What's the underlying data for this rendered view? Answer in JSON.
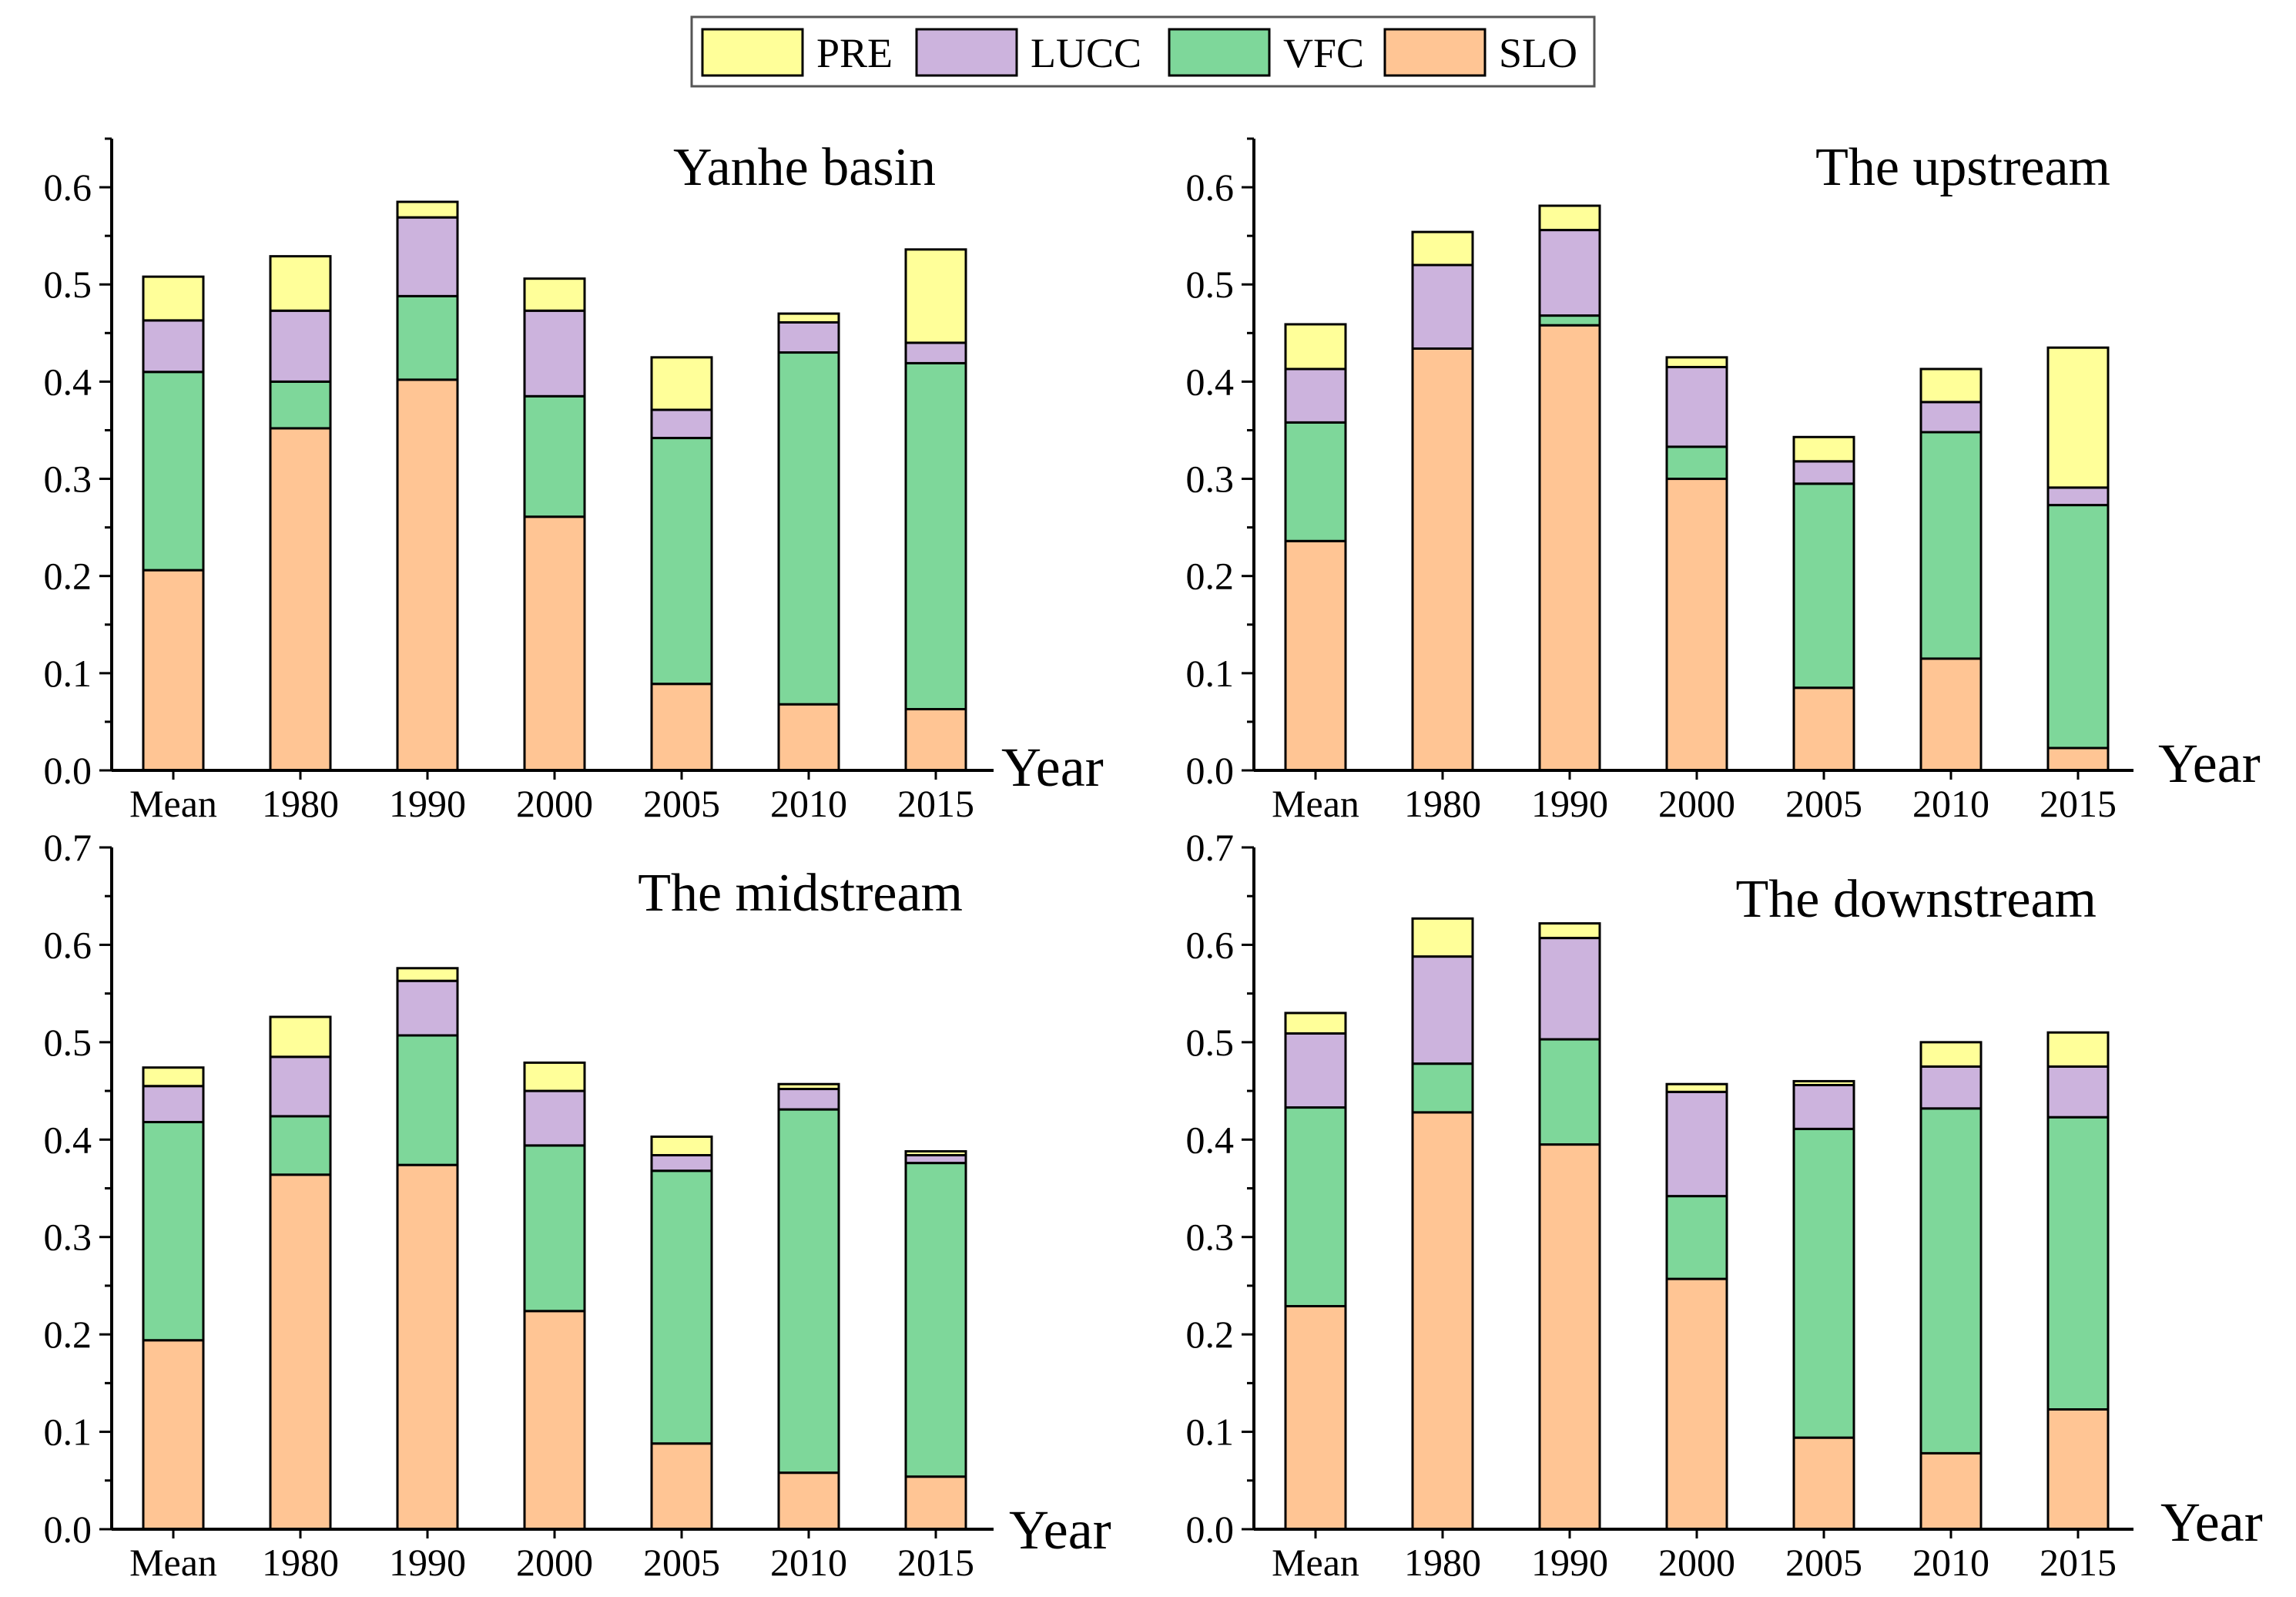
{
  "legend": [
    {
      "key": "PRE",
      "label": "PRE",
      "color": "#FFFF99"
    },
    {
      "key": "LUCC",
      "label": "LUCC",
      "color": "#CCB3DD"
    },
    {
      "key": "VFC",
      "label": "VFC",
      "color": "#7ED79A"
    },
    {
      "key": "SLO",
      "label": "SLO",
      "color": "#FFC594"
    }
  ],
  "chart_data": [
    {
      "type": "bar",
      "stacked": true,
      "title": "Yanhe basin",
      "xlabel": "Year",
      "ylabel": "",
      "categories": [
        "Mean",
        "1980",
        "1990",
        "2000",
        "2005",
        "2010",
        "2015"
      ],
      "ylim": [
        0,
        0.65
      ],
      "yticks": [
        0.0,
        0.1,
        0.2,
        0.3,
        0.4,
        0.5,
        0.6
      ],
      "ytick_labels": [
        "0.0",
        "0.1",
        "0.2",
        "0.3",
        "0.4",
        "0.5",
        "0.6"
      ],
      "series": [
        {
          "name": "SLO",
          "values": [
            0.206,
            0.352,
            0.402,
            0.261,
            0.089,
            0.068,
            0.063
          ]
        },
        {
          "name": "VFC",
          "values": [
            0.204,
            0.048,
            0.086,
            0.124,
            0.253,
            0.362,
            0.356
          ]
        },
        {
          "name": "LUCC",
          "values": [
            0.053,
            0.073,
            0.081,
            0.088,
            0.029,
            0.031,
            0.021
          ]
        },
        {
          "name": "PRE",
          "values": [
            0.045,
            0.056,
            0.016,
            0.033,
            0.054,
            0.009,
            0.096
          ]
        }
      ]
    },
    {
      "type": "bar",
      "stacked": true,
      "title": "The upstream",
      "xlabel": "Year",
      "ylabel": "",
      "categories": [
        "Mean",
        "1980",
        "1990",
        "2000",
        "2005",
        "2010",
        "2015"
      ],
      "ylim": [
        0,
        0.65
      ],
      "yticks": [
        0.0,
        0.1,
        0.2,
        0.3,
        0.4,
        0.5,
        0.6
      ],
      "ytick_labels": [
        "0.0",
        "0.1",
        "0.2",
        "0.3",
        "0.4",
        "0.5",
        "0.6"
      ],
      "series": [
        {
          "name": "SLO",
          "values": [
            0.236,
            0.434,
            0.458,
            0.3,
            0.085,
            0.115,
            0.023
          ]
        },
        {
          "name": "VFC",
          "values": [
            0.122,
            0.0,
            0.01,
            0.033,
            0.21,
            0.233,
            0.25
          ]
        },
        {
          "name": "LUCC",
          "values": [
            0.055,
            0.086,
            0.088,
            0.082,
            0.023,
            0.031,
            0.018
          ]
        },
        {
          "name": "PRE",
          "values": [
            0.046,
            0.034,
            0.025,
            0.01,
            0.025,
            0.034,
            0.144
          ]
        }
      ]
    },
    {
      "type": "bar",
      "stacked": true,
      "title": "The midstream",
      "xlabel": "Year",
      "ylabel": "",
      "categories": [
        "Mean",
        "1980",
        "1990",
        "2000",
        "2005",
        "2010",
        "2015"
      ],
      "ylim": [
        0,
        0.7
      ],
      "yticks": [
        0.0,
        0.1,
        0.2,
        0.3,
        0.4,
        0.5,
        0.6,
        0.7
      ],
      "ytick_labels": [
        "0.0",
        "0.1",
        "0.2",
        "0.3",
        "0.4",
        "0.5",
        "0.6",
        "0.7"
      ],
      "series": [
        {
          "name": "SLO",
          "values": [
            0.194,
            0.364,
            0.374,
            0.224,
            0.088,
            0.058,
            0.054
          ]
        },
        {
          "name": "VFC",
          "values": [
            0.224,
            0.06,
            0.133,
            0.17,
            0.28,
            0.373,
            0.322
          ]
        },
        {
          "name": "LUCC",
          "values": [
            0.037,
            0.061,
            0.056,
            0.056,
            0.016,
            0.021,
            0.008
          ]
        },
        {
          "name": "PRE",
          "values": [
            0.019,
            0.041,
            0.013,
            0.029,
            0.019,
            0.005,
            0.004
          ]
        }
      ]
    },
    {
      "type": "bar",
      "stacked": true,
      "title": "The downstream",
      "xlabel": "Year",
      "ylabel": "",
      "categories": [
        "Mean",
        "1980",
        "1990",
        "2000",
        "2005",
        "2010",
        "2015"
      ],
      "ylim": [
        0,
        0.7
      ],
      "yticks": [
        0.0,
        0.1,
        0.2,
        0.3,
        0.4,
        0.5,
        0.6,
        0.7
      ],
      "ytick_labels": [
        "0.0",
        "0.1",
        "0.2",
        "0.3",
        "0.4",
        "0.5",
        "0.6",
        "0.7"
      ],
      "series": [
        {
          "name": "SLO",
          "values": [
            0.229,
            0.428,
            0.395,
            0.257,
            0.094,
            0.078,
            0.123
          ]
        },
        {
          "name": "VFC",
          "values": [
            0.204,
            0.05,
            0.108,
            0.085,
            0.317,
            0.354,
            0.3
          ]
        },
        {
          "name": "LUCC",
          "values": [
            0.076,
            0.11,
            0.104,
            0.107,
            0.045,
            0.043,
            0.052
          ]
        },
        {
          "name": "PRE",
          "values": [
            0.021,
            0.039,
            0.015,
            0.008,
            0.004,
            0.025,
            0.035
          ]
        }
      ]
    }
  ]
}
